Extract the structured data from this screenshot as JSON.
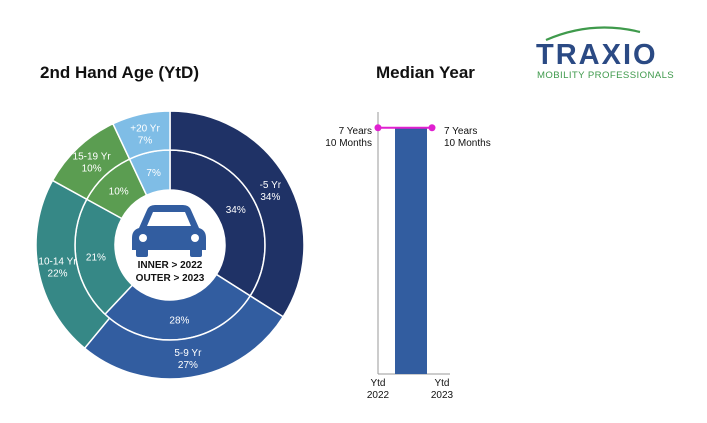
{
  "logo": {
    "name": "TRAXIO",
    "tagline": "MOBILITY PROFESSIONALS",
    "colors": {
      "text": "#2b4a84",
      "tagline": "#3f9a4c",
      "swoosh": "#3f9a4c"
    }
  },
  "chart_data": [
    {
      "type": "pie",
      "variant": "nested-donut",
      "title": "2nd Hand Age (YtD)",
      "center_label": [
        "INNER > 2022",
        "OUTER > 2023"
      ],
      "center_icon": "car-icon",
      "categories": [
        "-5 Yr",
        "5-9 Yr",
        "10-14 Yr",
        "15-19 Yr",
        "+20 Yr"
      ],
      "colors": [
        "#1f3266",
        "#325da0",
        "#368886",
        "#5b9d51",
        "#7fbde6"
      ],
      "series": [
        {
          "ring": "inner",
          "year": "2022",
          "values": [
            34,
            28,
            21,
            10,
            7
          ]
        },
        {
          "ring": "outer",
          "year": "2023",
          "values": [
            34,
            27,
            22,
            10,
            7
          ]
        }
      ],
      "inner_labels": [
        "34%",
        "28%",
        "21%",
        "10%",
        "7%"
      ],
      "outer_labels": [
        {
          "name": "-5 Yr",
          "pct": "34%"
        },
        {
          "name": "5-9 Yr",
          "pct": "27%"
        },
        {
          "name": "10-14 Yr",
          "pct": "22%"
        },
        {
          "name": "15-19 Yr",
          "pct": "10%"
        },
        {
          "name": "+20 Yr",
          "pct": "7%"
        }
      ]
    },
    {
      "type": "bar",
      "title": "Median Year",
      "categories": [
        "Ytd 2022",
        "Ytd 2023"
      ],
      "category_labels": [
        [
          "Ytd",
          "2022"
        ],
        [
          "Ytd",
          "2023"
        ]
      ],
      "values_months": [
        94,
        94
      ],
      "value_labels": [
        [
          "7 Years",
          "10 Months"
        ],
        [
          "7 Years",
          "10 Months"
        ]
      ],
      "ylim": [
        0,
        100
      ],
      "bar_color": "#325da0",
      "marker_color": "#e020d0"
    }
  ]
}
